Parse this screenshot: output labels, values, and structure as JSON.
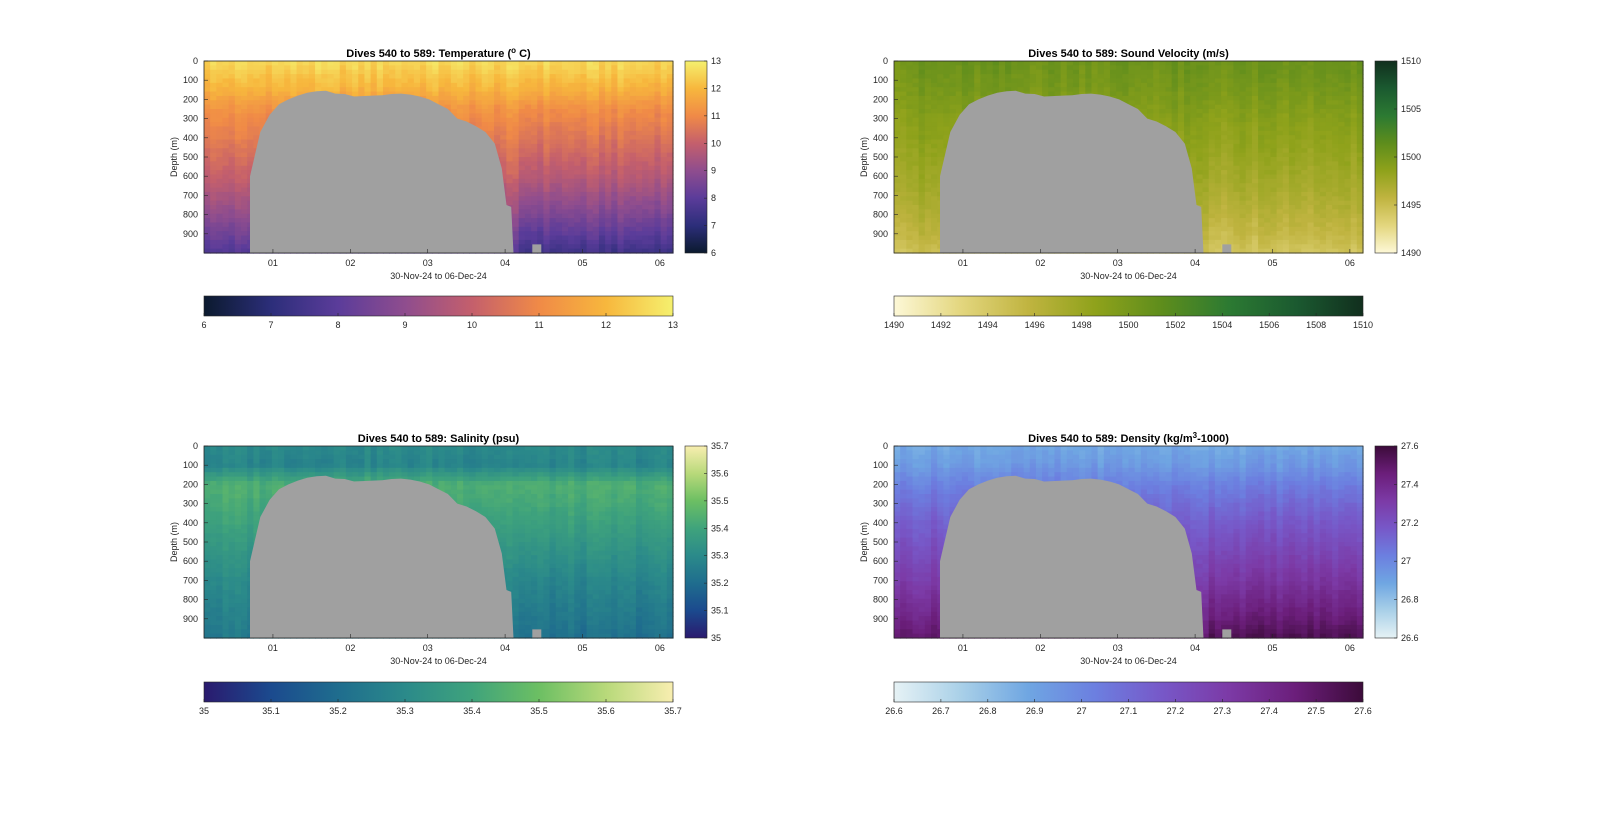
{
  "figure": {
    "background": "#ffffff",
    "mask_color": "#a0a0a0"
  },
  "chart_data": [
    {
      "id": "temperature",
      "type": "heatmap",
      "title_prefix": "Dives 540 to 589: Temperature (",
      "title_sup": "o",
      "title_suffix": " C)",
      "xlabel": "30-Nov-24 to 06-Dec-24",
      "ylabel": "Depth (m)",
      "x_ticks": [
        "01",
        "02",
        "03",
        "04",
        "05",
        "06"
      ],
      "y_ticks": [
        "0",
        "100",
        "200",
        "300",
        "400",
        "500",
        "600",
        "700",
        "800",
        "900"
      ],
      "ylim": [
        0,
        1000
      ],
      "clim": [
        6,
        13
      ],
      "cbar_ticks": [
        "6",
        "7",
        "8",
        "9",
        "10",
        "11",
        "12",
        "13"
      ],
      "hbar_ticks": [
        "6",
        "7",
        "8",
        "9",
        "10",
        "11",
        "12",
        "13"
      ],
      "colormap": [
        "#0b1a2e",
        "#2c2e7a",
        "#5b3c9a",
        "#8f4d8e",
        "#c45f6c",
        "#f08a47",
        "#f7b73d",
        "#f5f06e"
      ],
      "profile": [
        [
          0,
          12.6
        ],
        [
          150,
          11.9
        ],
        [
          250,
          11.2
        ],
        [
          400,
          10.7
        ],
        [
          600,
          10.0
        ],
        [
          800,
          9.0
        ],
        [
          1000,
          7.8
        ]
      ]
    },
    {
      "id": "sound-velocity",
      "type": "heatmap",
      "title_prefix": "Dives 540 to 589: Sound Velocity (m/s)",
      "title_sup": "",
      "title_suffix": "",
      "xlabel": "30-Nov-24 to 06-Dec-24",
      "ylabel": "Depth (m)",
      "x_ticks": [
        "01",
        "02",
        "03",
        "04",
        "05",
        "06"
      ],
      "y_ticks": [
        "0",
        "100",
        "200",
        "300",
        "400",
        "500",
        "600",
        "700",
        "800",
        "900"
      ],
      "ylim": [
        0,
        1000
      ],
      "clim": [
        1490,
        1510
      ],
      "cbar_ticks": [
        "1490",
        "1495",
        "1500",
        "1505",
        "1510"
      ],
      "hbar_ticks": [
        "1490",
        "1492",
        "1494",
        "1496",
        "1498",
        "1500",
        "1502",
        "1504",
        "1506",
        "1508",
        "1510"
      ],
      "colormap": [
        "#fdf8d7",
        "#e3d67e",
        "#c0b440",
        "#8fa21b",
        "#5e8d1c",
        "#2c7a32",
        "#1b5a30",
        "#112f1e"
      ],
      "profile": [
        [
          0,
          1500.6
        ],
        [
          150,
          1499.9
        ],
        [
          300,
          1499.0
        ],
        [
          500,
          1498.2
        ],
        [
          700,
          1497.2
        ],
        [
          900,
          1495.8
        ],
        [
          1000,
          1494.8
        ]
      ]
    },
    {
      "id": "salinity",
      "type": "heatmap",
      "title_prefix": "Dives 540 to 589: Salinity (psu)",
      "title_sup": "",
      "title_suffix": "",
      "xlabel": "30-Nov-24 to 06-Dec-24",
      "ylabel": "Depth (m)",
      "x_ticks": [
        "01",
        "02",
        "03",
        "04",
        "05",
        "06"
      ],
      "y_ticks": [
        "0",
        "100",
        "200",
        "300",
        "400",
        "500",
        "600",
        "700",
        "800",
        "900"
      ],
      "ylim": [
        0,
        1000
      ],
      "clim": [
        35,
        35.7
      ],
      "cbar_ticks": [
        "35",
        "35.1",
        "35.2",
        "35.3",
        "35.4",
        "35.5",
        "35.6",
        "35.7"
      ],
      "hbar_ticks": [
        "35",
        "35.1",
        "35.2",
        "35.3",
        "35.4",
        "35.5",
        "35.6",
        "35.7"
      ],
      "colormap": [
        "#2a1a6e",
        "#1b4a8e",
        "#1f6d8e",
        "#2b8a8a",
        "#3fa37c",
        "#6cbf63",
        "#b8d97a",
        "#f8eeb0"
      ],
      "profile": [
        [
          0,
          35.3
        ],
        [
          100,
          35.28
        ],
        [
          200,
          35.44
        ],
        [
          300,
          35.42
        ],
        [
          500,
          35.36
        ],
        [
          700,
          35.3
        ],
        [
          900,
          35.26
        ],
        [
          1000,
          35.24
        ]
      ]
    },
    {
      "id": "density",
      "type": "heatmap",
      "title_prefix": "Dives 540 to 589: Density (kg/m",
      "title_sup": "3",
      "title_suffix": "-1000)",
      "xlabel": "30-Nov-24 to 06-Dec-24",
      "ylabel": "Depth (m)",
      "x_ticks": [
        "01",
        "02",
        "03",
        "04",
        "05",
        "06"
      ],
      "y_ticks": [
        "0",
        "100",
        "200",
        "300",
        "400",
        "500",
        "600",
        "700",
        "800",
        "900"
      ],
      "ylim": [
        0,
        1000
      ],
      "clim": [
        26.6,
        27.6
      ],
      "cbar_ticks": [
        "26.6",
        "26.8",
        "27",
        "27.2",
        "27.4",
        "27.6"
      ],
      "hbar_ticks": [
        "26.6",
        "26.7",
        "26.8",
        "26.9",
        "27",
        "27.1",
        "27.2",
        "27.3",
        "27.4",
        "27.5",
        "27.6"
      ],
      "colormap": [
        "#e6f2f5",
        "#a9d0e8",
        "#6fa6e2",
        "#6c7fe0",
        "#7758c8",
        "#7c3aa6",
        "#6b1e7a",
        "#3c0b3a"
      ],
      "profile": [
        [
          0,
          26.88
        ],
        [
          100,
          26.93
        ],
        [
          200,
          27.02
        ],
        [
          350,
          27.12
        ],
        [
          500,
          27.2
        ],
        [
          700,
          27.3
        ],
        [
          900,
          27.42
        ],
        [
          1000,
          27.5
        ]
      ]
    }
  ]
}
